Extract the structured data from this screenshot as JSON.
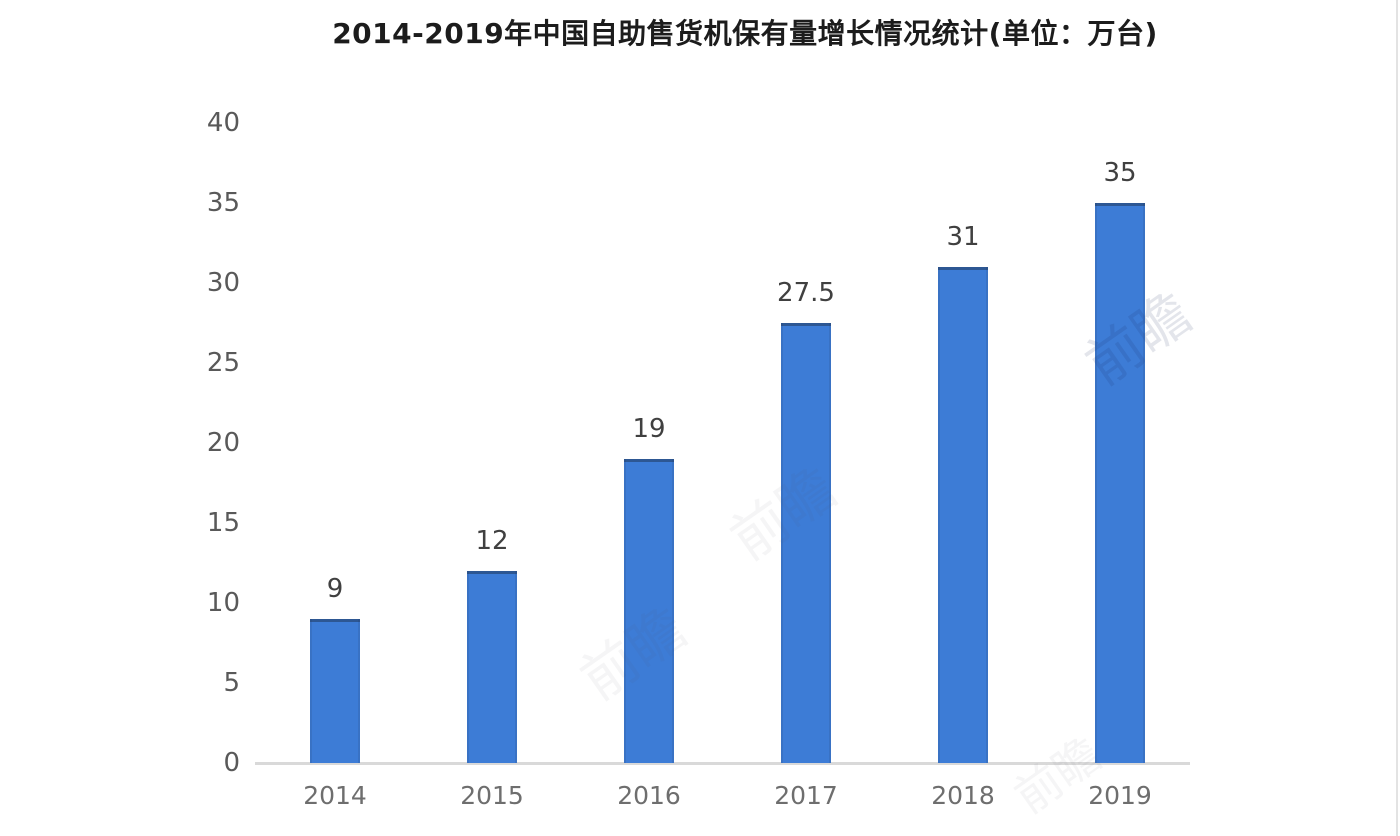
{
  "chart_data": {
    "type": "bar",
    "title": "2014-2019年中国自助售货机保有量增长情况统计(单位：万台)",
    "categories": [
      "2014",
      "2015",
      "2016",
      "2017",
      "2018",
      "2019"
    ],
    "values": [
      9,
      12,
      19,
      27.5,
      31,
      35
    ],
    "value_labels": [
      "9",
      "12",
      "19",
      "27.5",
      "31",
      "35"
    ],
    "xlabel": "",
    "ylabel": "",
    "unit": "万台",
    "ylim": [
      0,
      40
    ],
    "yticks": [
      0,
      5,
      10,
      15,
      20,
      25,
      30,
      35,
      40
    ],
    "grid": false,
    "legend": "none",
    "colors": {
      "bar_fill": "#3d7cd6",
      "bar_top_edge": "#20385c",
      "axis_line": "#d9d9d9",
      "y_tick_label": "#595959",
      "x_tick_label": "#6e6e6e",
      "value_label": "#404040",
      "title": "#1c1c1c",
      "background": "#ffffff"
    }
  },
  "watermark": {
    "text": "前瞻"
  }
}
